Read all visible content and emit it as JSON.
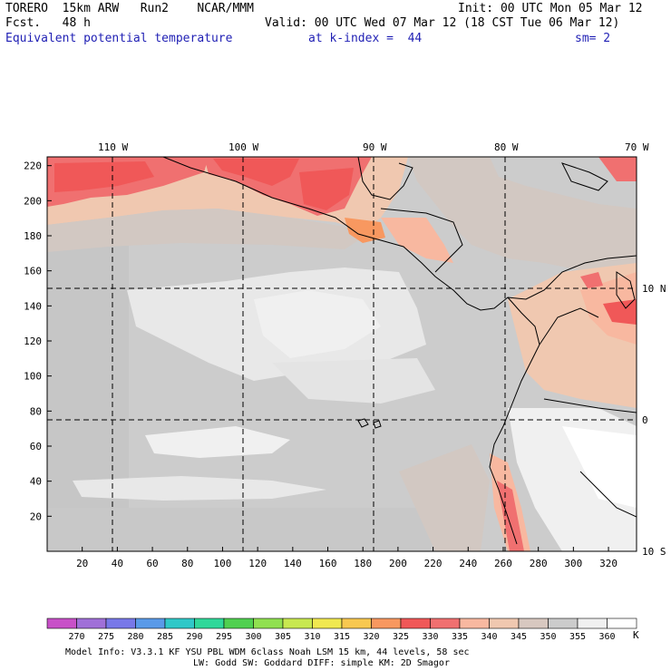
{
  "header": {
    "model": "TORERO  15km ARW   Run2    NCAR/MMM",
    "init": "Init: 00 UTC Mon 05 Mar 12",
    "fcst": "Fcst.   48 h",
    "valid": "Valid: 00 UTC Wed 07 Mar 12 (18 CST Tue 06 Mar 12)",
    "field": "Equivalent potential temperature",
    "level": "at k-index =  44",
    "smooth": "sm= 2"
  },
  "map": {
    "lon_labels": [
      "110 W",
      "100 W",
      "90 W",
      "80 W",
      "70 W"
    ],
    "lat_labels": [
      "10 N",
      "0",
      "10 S"
    ],
    "y_ticks": [
      "20",
      "40",
      "60",
      "80",
      "100",
      "120",
      "140",
      "160",
      "180",
      "200",
      "220"
    ],
    "x_ticks": [
      "20",
      "40",
      "60",
      "80",
      "100",
      "120",
      "140",
      "160",
      "180",
      "200",
      "220",
      "240",
      "260",
      "280",
      "300",
      "320"
    ]
  },
  "colorbar": {
    "unit": "K",
    "labels": [
      "270",
      "275",
      "280",
      "285",
      "290",
      "295",
      "300",
      "305",
      "310",
      "315",
      "320",
      "325",
      "330",
      "335",
      "340",
      "345",
      "350",
      "355",
      "360"
    ],
    "colors": [
      "#c850c8",
      "#a070d8",
      "#7878e8",
      "#5a9ae8",
      "#30c8c8",
      "#30d89a",
      "#50d050",
      "#90e050",
      "#c8e850",
      "#f0e850",
      "#f8c850",
      "#f89860",
      "#f05858",
      "#f07070",
      "#f8b8a0",
      "#f0c8b0",
      "#d8c8c0",
      "#cccccc",
      "#f0f0f0",
      "#ffffff"
    ]
  },
  "footer": {
    "line1": "Model Info: V3.3.1   KF      YSU PBL  WDM 6class  Noah LSM  15 km,   44 levels,   58 sec",
    "line2": "LW: Godd SW: Goddard DIFF: simple KM: 2D Smagor"
  }
}
